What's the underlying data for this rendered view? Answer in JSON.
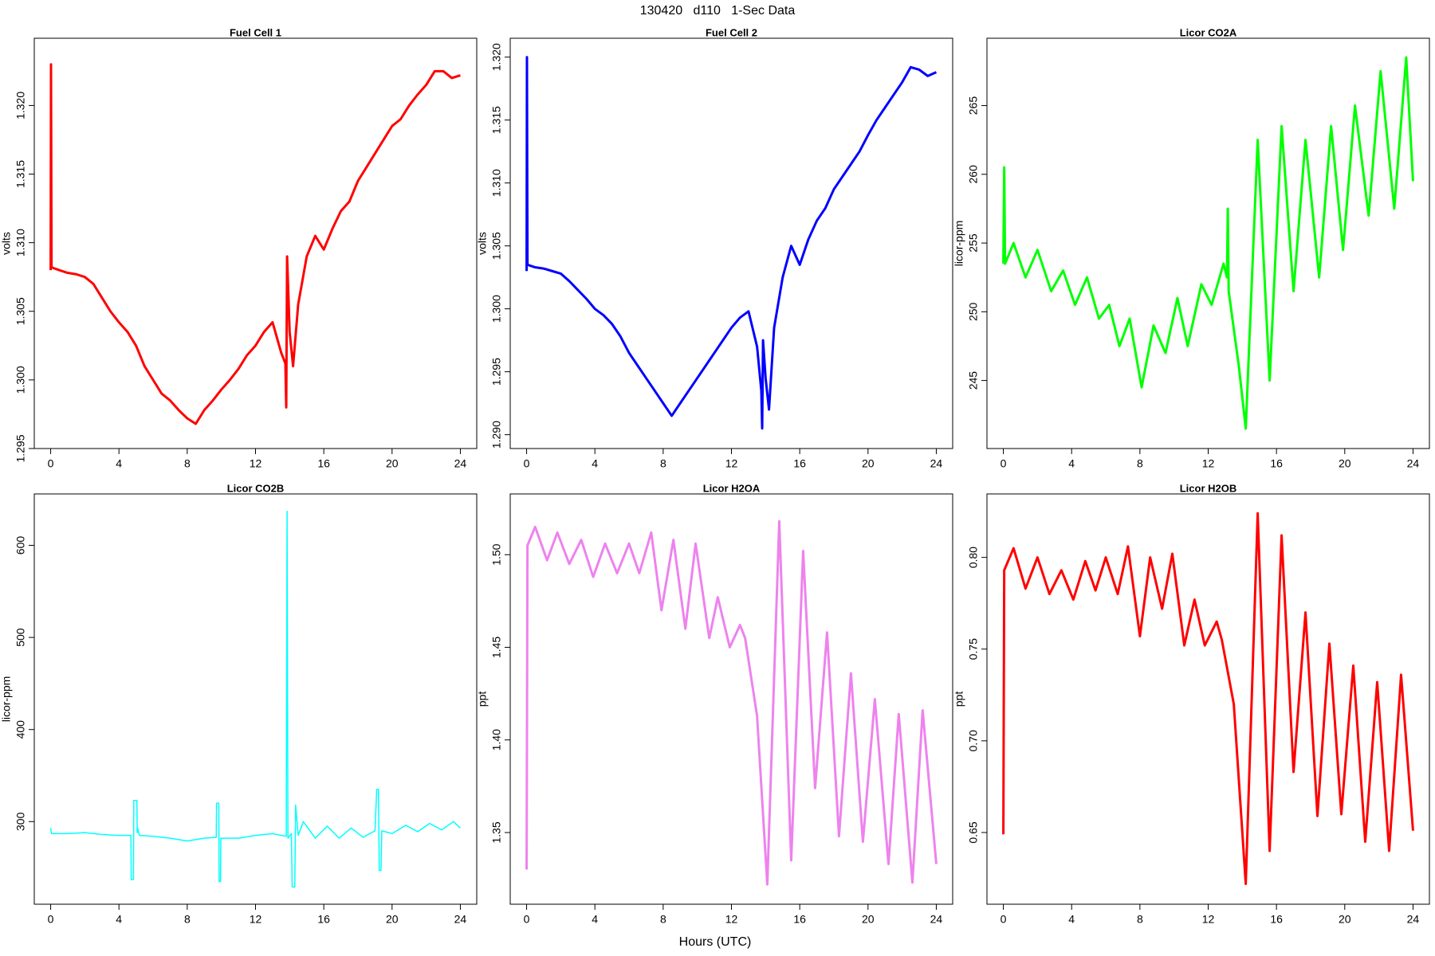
{
  "title": "130420   d110   1-Sec Data",
  "xlabel": "Hours (UTC)",
  "chart_data": [
    {
      "type": "line",
      "title": "Fuel Cell 1",
      "ylabel": "volts",
      "color": "#ff0000",
      "xlim": [
        -0.96,
        24.96
      ],
      "xticks": [
        0,
        4,
        8,
        12,
        16,
        20,
        24
      ],
      "ylim": [
        1.295,
        1.3249
      ],
      "yticks": [
        1.295,
        {
          "value": 1.3,
          "label": "1.300"
        },
        1.305,
        {
          "value": 1.31,
          "label": "1.310"
        },
        1.315,
        {
          "value": 1.32,
          "label": "1.320"
        }
      ],
      "x": [
        0,
        0.02,
        0.05,
        0.5,
        1,
        1.5,
        2,
        2.5,
        3,
        3.5,
        4,
        4.5,
        5,
        5.5,
        6,
        6.5,
        7,
        7.5,
        8,
        8.5,
        9,
        9.5,
        10,
        10.5,
        11,
        11.5,
        12,
        12.5,
        13,
        13.5,
        13.75,
        13.8,
        13.85,
        14,
        14.2,
        14.5,
        15,
        15.5,
        16,
        16.5,
        17,
        17.5,
        18,
        18.5,
        19,
        19.5,
        20,
        20.5,
        21,
        21.5,
        22,
        22.5,
        23,
        23.5,
        24
      ],
      "values": [
        1.308,
        1.323,
        1.3082,
        1.308,
        1.3078,
        1.3077,
        1.3075,
        1.307,
        1.306,
        1.305,
        1.3042,
        1.3035,
        1.3025,
        1.301,
        1.3,
        1.299,
        1.2985,
        1.2978,
        1.2972,
        1.2968,
        1.2978,
        1.2985,
        1.2993,
        1.3,
        1.3008,
        1.3018,
        1.3025,
        1.3035,
        1.3042,
        1.302,
        1.3012,
        1.298,
        1.309,
        1.3035,
        1.301,
        1.3055,
        1.309,
        1.3105,
        1.3095,
        1.311,
        1.3123,
        1.313,
        1.3145,
        1.3155,
        1.3165,
        1.3175,
        1.3185,
        1.319,
        1.32,
        1.3208,
        1.3215,
        1.3225,
        1.3225,
        1.322,
        1.3222
      ]
    },
    {
      "type": "line",
      "title": "Fuel Cell 2",
      "ylabel": "volts",
      "color": "#0000ff",
      "xlim": [
        -0.96,
        24.96
      ],
      "xticks": [
        0,
        4,
        8,
        12,
        16,
        20,
        24
      ],
      "ylim": [
        1.2889,
        1.3215
      ],
      "yticks": [
        {
          "value": 1.29,
          "label": "1.290"
        },
        1.295,
        {
          "value": 1.3,
          "label": "1.300"
        },
        1.305,
        {
          "value": 1.31,
          "label": "1.310"
        },
        1.315,
        {
          "value": 1.32,
          "label": "1.320"
        }
      ],
      "x": [
        0,
        0.02,
        0.05,
        0.5,
        1,
        1.5,
        2,
        2.5,
        3,
        3.5,
        4,
        4.5,
        5,
        5.5,
        6,
        6.5,
        7,
        7.5,
        8,
        8.5,
        9,
        9.5,
        10,
        10.5,
        11,
        11.5,
        12,
        12.5,
        13,
        13.5,
        13.75,
        13.8,
        13.85,
        14,
        14.2,
        14.5,
        15,
        15.5,
        16,
        16.5,
        17,
        17.5,
        18,
        18.5,
        19,
        19.5,
        20,
        20.5,
        21,
        21.5,
        22,
        22.5,
        23,
        23.5,
        24
      ],
      "values": [
        1.303,
        1.32,
        1.3035,
        1.3033,
        1.3032,
        1.303,
        1.3028,
        1.3022,
        1.3015,
        1.3008,
        1.3,
        1.2995,
        1.2988,
        1.2978,
        1.2965,
        1.2955,
        1.2945,
        1.2935,
        1.2925,
        1.2915,
        1.2925,
        1.2935,
        1.2945,
        1.2955,
        1.2965,
        1.2975,
        1.2985,
        1.2993,
        1.2998,
        1.297,
        1.2935,
        1.2905,
        1.2975,
        1.2945,
        1.292,
        1.2985,
        1.3025,
        1.305,
        1.3035,
        1.3055,
        1.307,
        1.308,
        1.3095,
        1.3105,
        1.3115,
        1.3125,
        1.3138,
        1.315,
        1.316,
        1.317,
        1.318,
        1.3192,
        1.319,
        1.3185,
        1.3188
      ]
    },
    {
      "type": "line",
      "title": "Licor CO2A",
      "ylabel": "licor-ppm",
      "color": "#00ff00",
      "xlim": [
        -0.96,
        24.96
      ],
      "xticks": [
        0,
        4,
        8,
        12,
        16,
        20,
        24
      ],
      "ylim": [
        240.05,
        269.9
      ],
      "yticks": [
        245,
        250,
        255,
        260,
        265
      ],
      "x": [
        0,
        0.05,
        0.1,
        0.6,
        1.3,
        2,
        2.8,
        3.5,
        4.2,
        4.9,
        5.6,
        6.2,
        6.8,
        7.4,
        8.1,
        8.8,
        9.5,
        10.2,
        10.8,
        11.6,
        12.2,
        12.9,
        13.1,
        13.15,
        13.2,
        13.8,
        14.2,
        14.9,
        15.6,
        16.3,
        17,
        17.7,
        18.5,
        19.2,
        19.9,
        20.6,
        21.4,
        22.1,
        22.9,
        23.6,
        24
      ],
      "values": [
        253.5,
        260.5,
        253.5,
        255,
        252.5,
        254.5,
        251.5,
        253,
        250.5,
        252.5,
        249.5,
        250.5,
        247.5,
        249.5,
        244.5,
        249,
        247,
        251,
        247.5,
        252,
        250.5,
        253.5,
        252.5,
        257.5,
        251.5,
        246,
        241.5,
        262.5,
        245,
        263.5,
        251.5,
        262.5,
        252.5,
        263.5,
        254.5,
        265,
        257,
        267.5,
        257.5,
        268.5,
        259.5
      ]
    },
    {
      "type": "line",
      "title": "Licor CO2B",
      "ylabel": "licor-ppm",
      "color": "#00ffff",
      "xlim": [
        -0.96,
        24.96
      ],
      "xticks": [
        0,
        4,
        8,
        12,
        16,
        20,
        24
      ],
      "ylim": [
        210.3,
        655.8
      ],
      "yticks": [
        300,
        400,
        500,
        600
      ],
      "x": [
        0,
        0.05,
        1,
        2,
        3,
        4,
        4.7,
        4.72,
        4.85,
        4.87,
        5.05,
        5.07,
        5.1,
        5.2,
        6,
        7,
        8,
        9,
        9.7,
        9.72,
        9.85,
        9.87,
        9.95,
        9.97,
        11,
        12,
        13,
        13.8,
        13.85,
        13.9,
        14.1,
        14.15,
        14.3,
        14.35,
        14.5,
        14.8,
        15.5,
        16.2,
        16.9,
        17.6,
        18.3,
        19,
        19.1,
        19.2,
        19.25,
        19.35,
        19.4,
        20,
        20.8,
        21.5,
        22.2,
        22.9,
        23.6,
        24
      ],
      "values": [
        293,
        287,
        287,
        288,
        286,
        285,
        285,
        237,
        237,
        323,
        323,
        288,
        293,
        285,
        284,
        282,
        279,
        282,
        283,
        320,
        320,
        235,
        235,
        282,
        282,
        285,
        287,
        284,
        637,
        282,
        287,
        229,
        229,
        318,
        285,
        300,
        282,
        295,
        282,
        293,
        283,
        290,
        335,
        335,
        247,
        247,
        290,
        287,
        296,
        289,
        298,
        291,
        300,
        293
      ]
    },
    {
      "type": "line",
      "title": "Licor H2OA",
      "ylabel": "ppt",
      "color": "#ee82ee",
      "xlim": [
        -0.96,
        24.96
      ],
      "xticks": [
        0,
        4,
        8,
        12,
        16,
        20,
        24
      ],
      "ylim": [
        1.3113,
        1.5328
      ],
      "yticks": [
        1.35,
        {
          "value": 1.4,
          "label": "1.40"
        },
        1.45,
        {
          "value": 1.5,
          "label": "1.50"
        }
      ],
      "x": [
        0,
        0.05,
        0.5,
        1.2,
        1.8,
        2.5,
        3.2,
        3.9,
        4.6,
        5.3,
        6,
        6.6,
        7.3,
        7.9,
        8.6,
        9.3,
        9.9,
        10.7,
        11.2,
        11.9,
        12.5,
        12.8,
        13.5,
        14.1,
        14.8,
        15.5,
        16.2,
        16.9,
        17.6,
        18.3,
        19,
        19.7,
        20.4,
        21.2,
        21.8,
        22.6,
        23.2,
        24
      ],
      "values": [
        1.33,
        1.505,
        1.515,
        1.497,
        1.512,
        1.495,
        1.508,
        1.488,
        1.506,
        1.49,
        1.506,
        1.49,
        1.512,
        1.47,
        1.508,
        1.46,
        1.506,
        1.455,
        1.477,
        1.45,
        1.462,
        1.455,
        1.413,
        1.322,
        1.518,
        1.335,
        1.502,
        1.374,
        1.458,
        1.348,
        1.436,
        1.345,
        1.422,
        1.333,
        1.414,
        1.323,
        1.416,
        1.333
      ]
    },
    {
      "type": "line",
      "title": "Licor H2OB",
      "ylabel": "ppt",
      "color": "#ff0000",
      "xlim": [
        -0.96,
        24.96
      ],
      "xticks": [
        0,
        4,
        8,
        12,
        16,
        20,
        24
      ],
      "ylim": [
        0.6109,
        0.8346
      ],
      "yticks": [
        0.65,
        {
          "value": 0.7,
          "label": "0.70"
        },
        0.75,
        {
          "value": 0.8,
          "label": "0.80"
        }
      ],
      "x": [
        0,
        0.05,
        0.6,
        1.3,
        2,
        2.7,
        3.4,
        4.1,
        4.8,
        5.4,
        6,
        6.7,
        7.3,
        8,
        8.6,
        9.3,
        9.9,
        10.6,
        11.2,
        11.8,
        12.5,
        12.8,
        13.5,
        14.2,
        14.9,
        15.6,
        16.3,
        17,
        17.7,
        18.4,
        19.1,
        19.8,
        20.5,
        21.2,
        21.9,
        22.6,
        23.3,
        24
      ],
      "values": [
        0.649,
        0.793,
        0.805,
        0.783,
        0.8,
        0.78,
        0.793,
        0.777,
        0.798,
        0.782,
        0.8,
        0.78,
        0.806,
        0.757,
        0.8,
        0.772,
        0.802,
        0.752,
        0.777,
        0.752,
        0.765,
        0.755,
        0.72,
        0.622,
        0.824,
        0.64,
        0.812,
        0.683,
        0.77,
        0.659,
        0.753,
        0.66,
        0.741,
        0.645,
        0.732,
        0.64,
        0.736,
        0.651
      ]
    }
  ]
}
